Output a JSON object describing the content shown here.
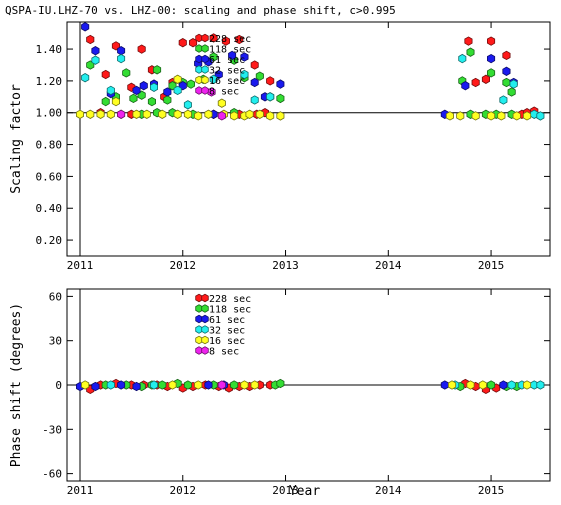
{
  "chart_data": [
    {
      "type": "scatter",
      "title": "QSPA-IU.LHZ-70 vs. LHZ-00: scaling and phase shift, c>0.995",
      "xlabel": "",
      "ylabel": "Scaling factor",
      "xlim": [
        2011.0,
        2015.7
      ],
      "ylim": [
        0.1,
        1.57
      ],
      "xticks": [
        "2011",
        "2012",
        "2013",
        "2014",
        "2015"
      ],
      "yticks": [
        "0.20",
        "0.40",
        "0.60",
        "0.80",
        "1.00",
        "1.20",
        "1.40"
      ],
      "reference_line": 1.0,
      "legend_position": "top-center",
      "series": [
        {
          "name": "228 sec",
          "color": "#ff1a1a",
          "points": [
            [
              2011.1,
              1.46
            ],
            [
              2011.25,
              1.24
            ],
            [
              2011.35,
              1.42
            ],
            [
              2011.5,
              1.16
            ],
            [
              2011.6,
              1.4
            ],
            [
              2011.7,
              1.27
            ],
            [
              2011.82,
              1.1
            ],
            [
              2011.9,
              1.19
            ],
            [
              2012.0,
              1.44
            ],
            [
              2012.1,
              1.44
            ],
            [
              2012.3,
              1.47
            ],
            [
              2012.42,
              1.45
            ],
            [
              2012.55,
              1.46
            ],
            [
              2012.7,
              1.3
            ],
            [
              2012.85,
              1.2
            ],
            [
              2014.78,
              1.45
            ],
            [
              2014.85,
              1.19
            ],
            [
              2014.95,
              1.21
            ],
            [
              2015.0,
              1.45
            ],
            [
              2015.15,
              1.36
            ],
            [
              2011.2,
              1.0
            ],
            [
              2011.5,
              0.99
            ],
            [
              2012.3,
              0.99
            ],
            [
              2012.55,
              0.99
            ],
            [
              2012.72,
              0.99
            ],
            [
              2012.8,
              1.0
            ],
            [
              2015.3,
              0.99
            ],
            [
              2015.35,
              1.0
            ],
            [
              2015.42,
              1.01
            ]
          ]
        },
        {
          "name": "118 sec",
          "color": "#33dd33",
          "points": [
            [
              2011.1,
              1.3
            ],
            [
              2011.25,
              1.07
            ],
            [
              2011.35,
              1.1
            ],
            [
              2011.45,
              1.25
            ],
            [
              2011.52,
              1.09
            ],
            [
              2011.6,
              1.11
            ],
            [
              2011.7,
              1.07
            ],
            [
              2011.75,
              1.27
            ],
            [
              2011.85,
              1.08
            ],
            [
              2011.9,
              1.17
            ],
            [
              2012.0,
              1.19
            ],
            [
              2012.08,
              1.18
            ],
            [
              2012.2,
              1.21
            ],
            [
              2012.3,
              1.35
            ],
            [
              2012.5,
              1.33
            ],
            [
              2012.6,
              1.22
            ],
            [
              2012.75,
              1.23
            ],
            [
              2012.85,
              1.1
            ],
            [
              2012.95,
              1.09
            ],
            [
              2014.72,
              1.2
            ],
            [
              2014.8,
              1.38
            ],
            [
              2015.0,
              1.25
            ],
            [
              2015.15,
              1.19
            ],
            [
              2015.2,
              1.13
            ],
            [
              2011.6,
              0.99
            ],
            [
              2011.75,
              1.0
            ],
            [
              2011.9,
              1.0
            ],
            [
              2012.1,
              0.99
            ],
            [
              2012.5,
              1.0
            ],
            [
              2014.8,
              0.99
            ],
            [
              2014.95,
              0.99
            ],
            [
              2015.05,
              0.99
            ],
            [
              2015.2,
              0.99
            ]
          ]
        },
        {
          "name": "61 sec",
          "color": "#1a1aee",
          "points": [
            [
              2011.05,
              1.54
            ],
            [
              2011.15,
              1.39
            ],
            [
              2011.3,
              1.12
            ],
            [
              2011.4,
              1.39
            ],
            [
              2011.55,
              1.14
            ],
            [
              2011.62,
              1.17
            ],
            [
              2011.72,
              1.18
            ],
            [
              2011.85,
              1.13
            ],
            [
              2012.0,
              1.17
            ],
            [
              2012.15,
              1.31
            ],
            [
              2012.25,
              1.32
            ],
            [
              2012.35,
              1.24
            ],
            [
              2012.48,
              1.36
            ],
            [
              2012.6,
              1.35
            ],
            [
              2012.7,
              1.19
            ],
            [
              2012.8,
              1.1
            ],
            [
              2012.95,
              1.18
            ],
            [
              2014.75,
              1.17
            ],
            [
              2015.0,
              1.34
            ],
            [
              2015.15,
              1.26
            ],
            [
              2015.22,
              1.19
            ],
            [
              2012.3,
              0.99
            ],
            [
              2014.55,
              0.99
            ]
          ]
        },
        {
          "name": "32 sec",
          "color": "#22eeee",
          "points": [
            [
              2011.05,
              1.22
            ],
            [
              2011.15,
              1.33
            ],
            [
              2011.3,
              1.14
            ],
            [
              2011.4,
              1.34
            ],
            [
              2011.72,
              1.16
            ],
            [
              2011.95,
              1.14
            ],
            [
              2012.05,
              1.05
            ],
            [
              2012.3,
              1.21
            ],
            [
              2012.6,
              1.24
            ],
            [
              2012.7,
              1.08
            ],
            [
              2012.85,
              1.1
            ],
            [
              2014.72,
              1.34
            ],
            [
              2015.12,
              1.08
            ],
            [
              2015.22,
              1.18
            ],
            [
              2015.42,
              0.99
            ],
            [
              2015.48,
              0.98
            ]
          ]
        },
        {
          "name": "16 sec",
          "color": "#ffff22",
          "points": [
            [
              2011.0,
              0.99
            ],
            [
              2011.1,
              0.99
            ],
            [
              2011.2,
              0.99
            ],
            [
              2011.3,
              0.99
            ],
            [
              2011.4,
              0.99
            ],
            [
              2011.55,
              0.99
            ],
            [
              2011.65,
              0.99
            ],
            [
              2011.8,
              0.99
            ],
            [
              2011.95,
              0.99
            ],
            [
              2012.05,
              0.99
            ],
            [
              2012.15,
              0.98
            ],
            [
              2012.25,
              0.99
            ],
            [
              2012.4,
              0.99
            ],
            [
              2012.5,
              0.98
            ],
            [
              2012.6,
              0.98
            ],
            [
              2012.65,
              0.99
            ],
            [
              2012.75,
              0.99
            ],
            [
              2012.85,
              0.98
            ],
            [
              2012.95,
              0.98
            ],
            [
              2014.6,
              0.98
            ],
            [
              2014.7,
              0.98
            ],
            [
              2014.85,
              0.98
            ],
            [
              2015.0,
              0.98
            ],
            [
              2015.1,
              0.98
            ],
            [
              2015.25,
              0.98
            ],
            [
              2015.35,
              0.98
            ],
            [
              2011.35,
              1.07
            ],
            [
              2011.95,
              1.21
            ],
            [
              2012.38,
              1.06
            ]
          ]
        },
        {
          "name": "8 sec",
          "color": "#ee22ee",
          "points": [
            [
              2011.4,
              0.99
            ],
            [
              2012.38,
              0.98
            ],
            [
              2012.28,
              1.13
            ]
          ]
        }
      ]
    },
    {
      "type": "scatter",
      "title": "",
      "xlabel": "Year",
      "ylabel": "Phase shift (degrees)",
      "xlim": [
        2011.0,
        2015.7
      ],
      "ylim": [
        -65,
        65
      ],
      "xticks": [
        "2011",
        "2012",
        "2013",
        "2014",
        "2015"
      ],
      "yticks": [
        "-60",
        "-30",
        "0",
        "30",
        "60"
      ],
      "reference_line": 0,
      "legend_position": "top-center",
      "series": [
        {
          "name": "228 sec",
          "color": "#ff1a1a",
          "points": [
            [
              2011.1,
              -3
            ],
            [
              2011.2,
              0
            ],
            [
              2011.35,
              1
            ],
            [
              2011.5,
              0
            ],
            [
              2011.62,
              0
            ],
            [
              2011.75,
              0
            ],
            [
              2011.85,
              -1
            ],
            [
              2012.0,
              -2
            ],
            [
              2012.1,
              -1
            ],
            [
              2012.22,
              0
            ],
            [
              2012.35,
              -1
            ],
            [
              2012.45,
              -2
            ],
            [
              2012.55,
              -1
            ],
            [
              2012.65,
              -1
            ],
            [
              2012.75,
              0
            ],
            [
              2012.85,
              0
            ],
            [
              2014.75,
              1
            ],
            [
              2014.85,
              -1
            ],
            [
              2014.95,
              -3
            ],
            [
              2015.05,
              -2
            ]
          ]
        },
        {
          "name": "118 sec",
          "color": "#33dd33",
          "points": [
            [
              2011.25,
              0
            ],
            [
              2011.45,
              0
            ],
            [
              2011.6,
              -1
            ],
            [
              2011.7,
              0
            ],
            [
              2011.8,
              0
            ],
            [
              2011.95,
              1
            ],
            [
              2012.05,
              0
            ],
            [
              2012.3,
              0
            ],
            [
              2012.5,
              0
            ],
            [
              2012.9,
              0
            ],
            [
              2012.95,
              1
            ],
            [
              2014.7,
              -1
            ],
            [
              2015.0,
              0
            ],
            [
              2015.15,
              -1
            ],
            [
              2015.25,
              -1
            ]
          ]
        },
        {
          "name": "61 sec",
          "color": "#1a1aee",
          "points": [
            [
              2011.0,
              -1
            ],
            [
              2011.15,
              -1
            ],
            [
              2011.4,
              0
            ],
            [
              2011.55,
              -1
            ],
            [
              2012.25,
              0
            ],
            [
              2012.4,
              0
            ],
            [
              2014.55,
              0
            ],
            [
              2015.12,
              0
            ]
          ]
        },
        {
          "name": "32 sec",
          "color": "#22eeee",
          "points": [
            [
              2011.3,
              0
            ],
            [
              2011.72,
              0
            ],
            [
              2014.65,
              0
            ],
            [
              2015.2,
              0
            ],
            [
              2015.3,
              0
            ],
            [
              2015.42,
              0
            ],
            [
              2015.48,
              0
            ]
          ]
        },
        {
          "name": "16 sec",
          "color": "#ffff22",
          "points": [
            [
              2011.05,
              0
            ],
            [
              2011.9,
              0
            ],
            [
              2012.15,
              0
            ],
            [
              2012.6,
              0
            ],
            [
              2012.7,
              0
            ],
            [
              2014.62,
              0
            ],
            [
              2014.8,
              0
            ],
            [
              2014.92,
              0
            ],
            [
              2015.35,
              0
            ]
          ]
        },
        {
          "name": "8 sec",
          "color": "#ee22ee",
          "points": [
            [
              2012.38,
              0
            ]
          ]
        }
      ]
    }
  ]
}
